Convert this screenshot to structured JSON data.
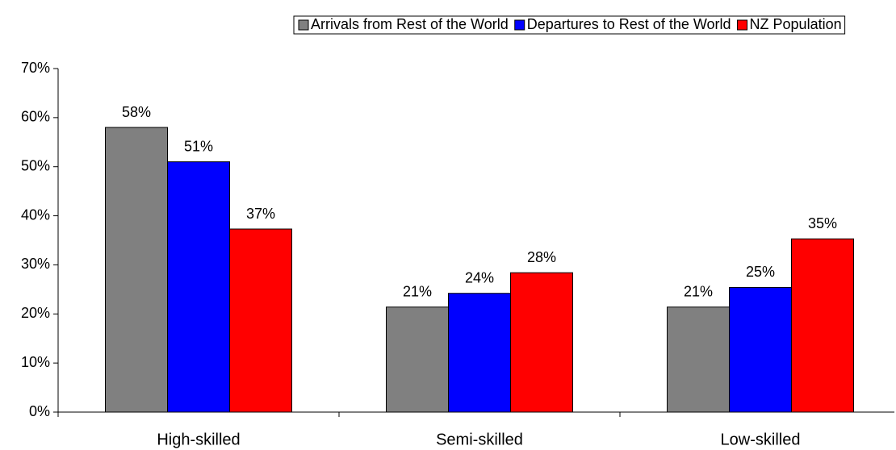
{
  "chart_data": {
    "type": "bar",
    "categories": [
      "High-skilled",
      "Semi-skilled",
      "Low-skilled"
    ],
    "series": [
      {
        "name": "Arrivals from Rest of the World",
        "color": "#808080",
        "values": [
          58,
          21.4,
          21.4
        ],
        "value_labels": [
          "58%",
          "21%",
          "21%"
        ]
      },
      {
        "name": "Departures to Rest of the World",
        "color": "#0000ff",
        "values": [
          51,
          24.2,
          25.4
        ],
        "value_labels": [
          "51%",
          "24%",
          "25%"
        ]
      },
      {
        "name": "NZ Population",
        "color": "#ff0000",
        "values": [
          37.3,
          28.4,
          35.3
        ],
        "value_labels": [
          "37%",
          "28%",
          "35%"
        ]
      }
    ],
    "ylim": [
      0,
      70
    ],
    "yticks": [
      {
        "value": 0,
        "label": "0%"
      },
      {
        "value": 10,
        "label": "10%"
      },
      {
        "value": 20,
        "label": "20%"
      },
      {
        "value": 30,
        "label": "30%"
      },
      {
        "value": 40,
        "label": "40%"
      },
      {
        "value": 50,
        "label": "50%"
      },
      {
        "value": 60,
        "label": "60%"
      },
      {
        "value": 70,
        "label": "70%"
      }
    ],
    "legend": "top",
    "grid": false
  }
}
